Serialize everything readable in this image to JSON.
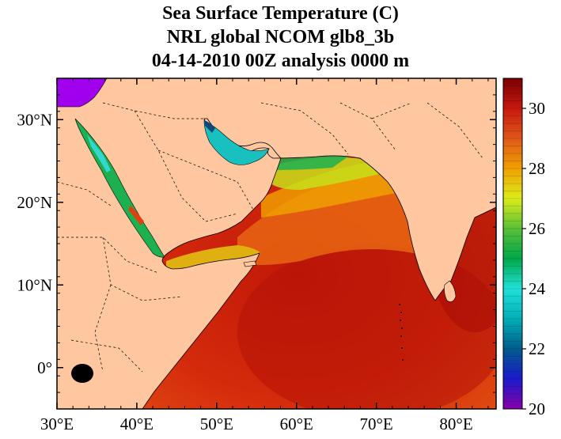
{
  "title": {
    "line1": "Sea Surface Temperature (C)",
    "line2": "NRL global NCOM glb8_3b",
    "line3": "04-14-2010 00Z analysis   0000 m"
  },
  "map": {
    "lon_range": [
      30,
      85
    ],
    "lat_range": [
      -5,
      35
    ],
    "x_ticks": [
      "30°E",
      "40°E",
      "50°E",
      "60°E",
      "70°E",
      "80°E"
    ],
    "y_ticks": [
      "30°N",
      "20°N",
      "10°N",
      "0°"
    ],
    "land_color": "#fec79f",
    "border_style": "dashed"
  },
  "colorbar": {
    "min": 20,
    "max": 31,
    "labels": [
      "30",
      "28",
      "26",
      "24",
      "22",
      "20"
    ],
    "colors": [
      "#8800aa",
      "#1a1acc",
      "#005c8c",
      "#00b0b8",
      "#20e0d8",
      "#00a84a",
      "#58c038",
      "#dcec1a",
      "#f0a000",
      "#e05818",
      "#c81810",
      "#780000"
    ]
  }
}
